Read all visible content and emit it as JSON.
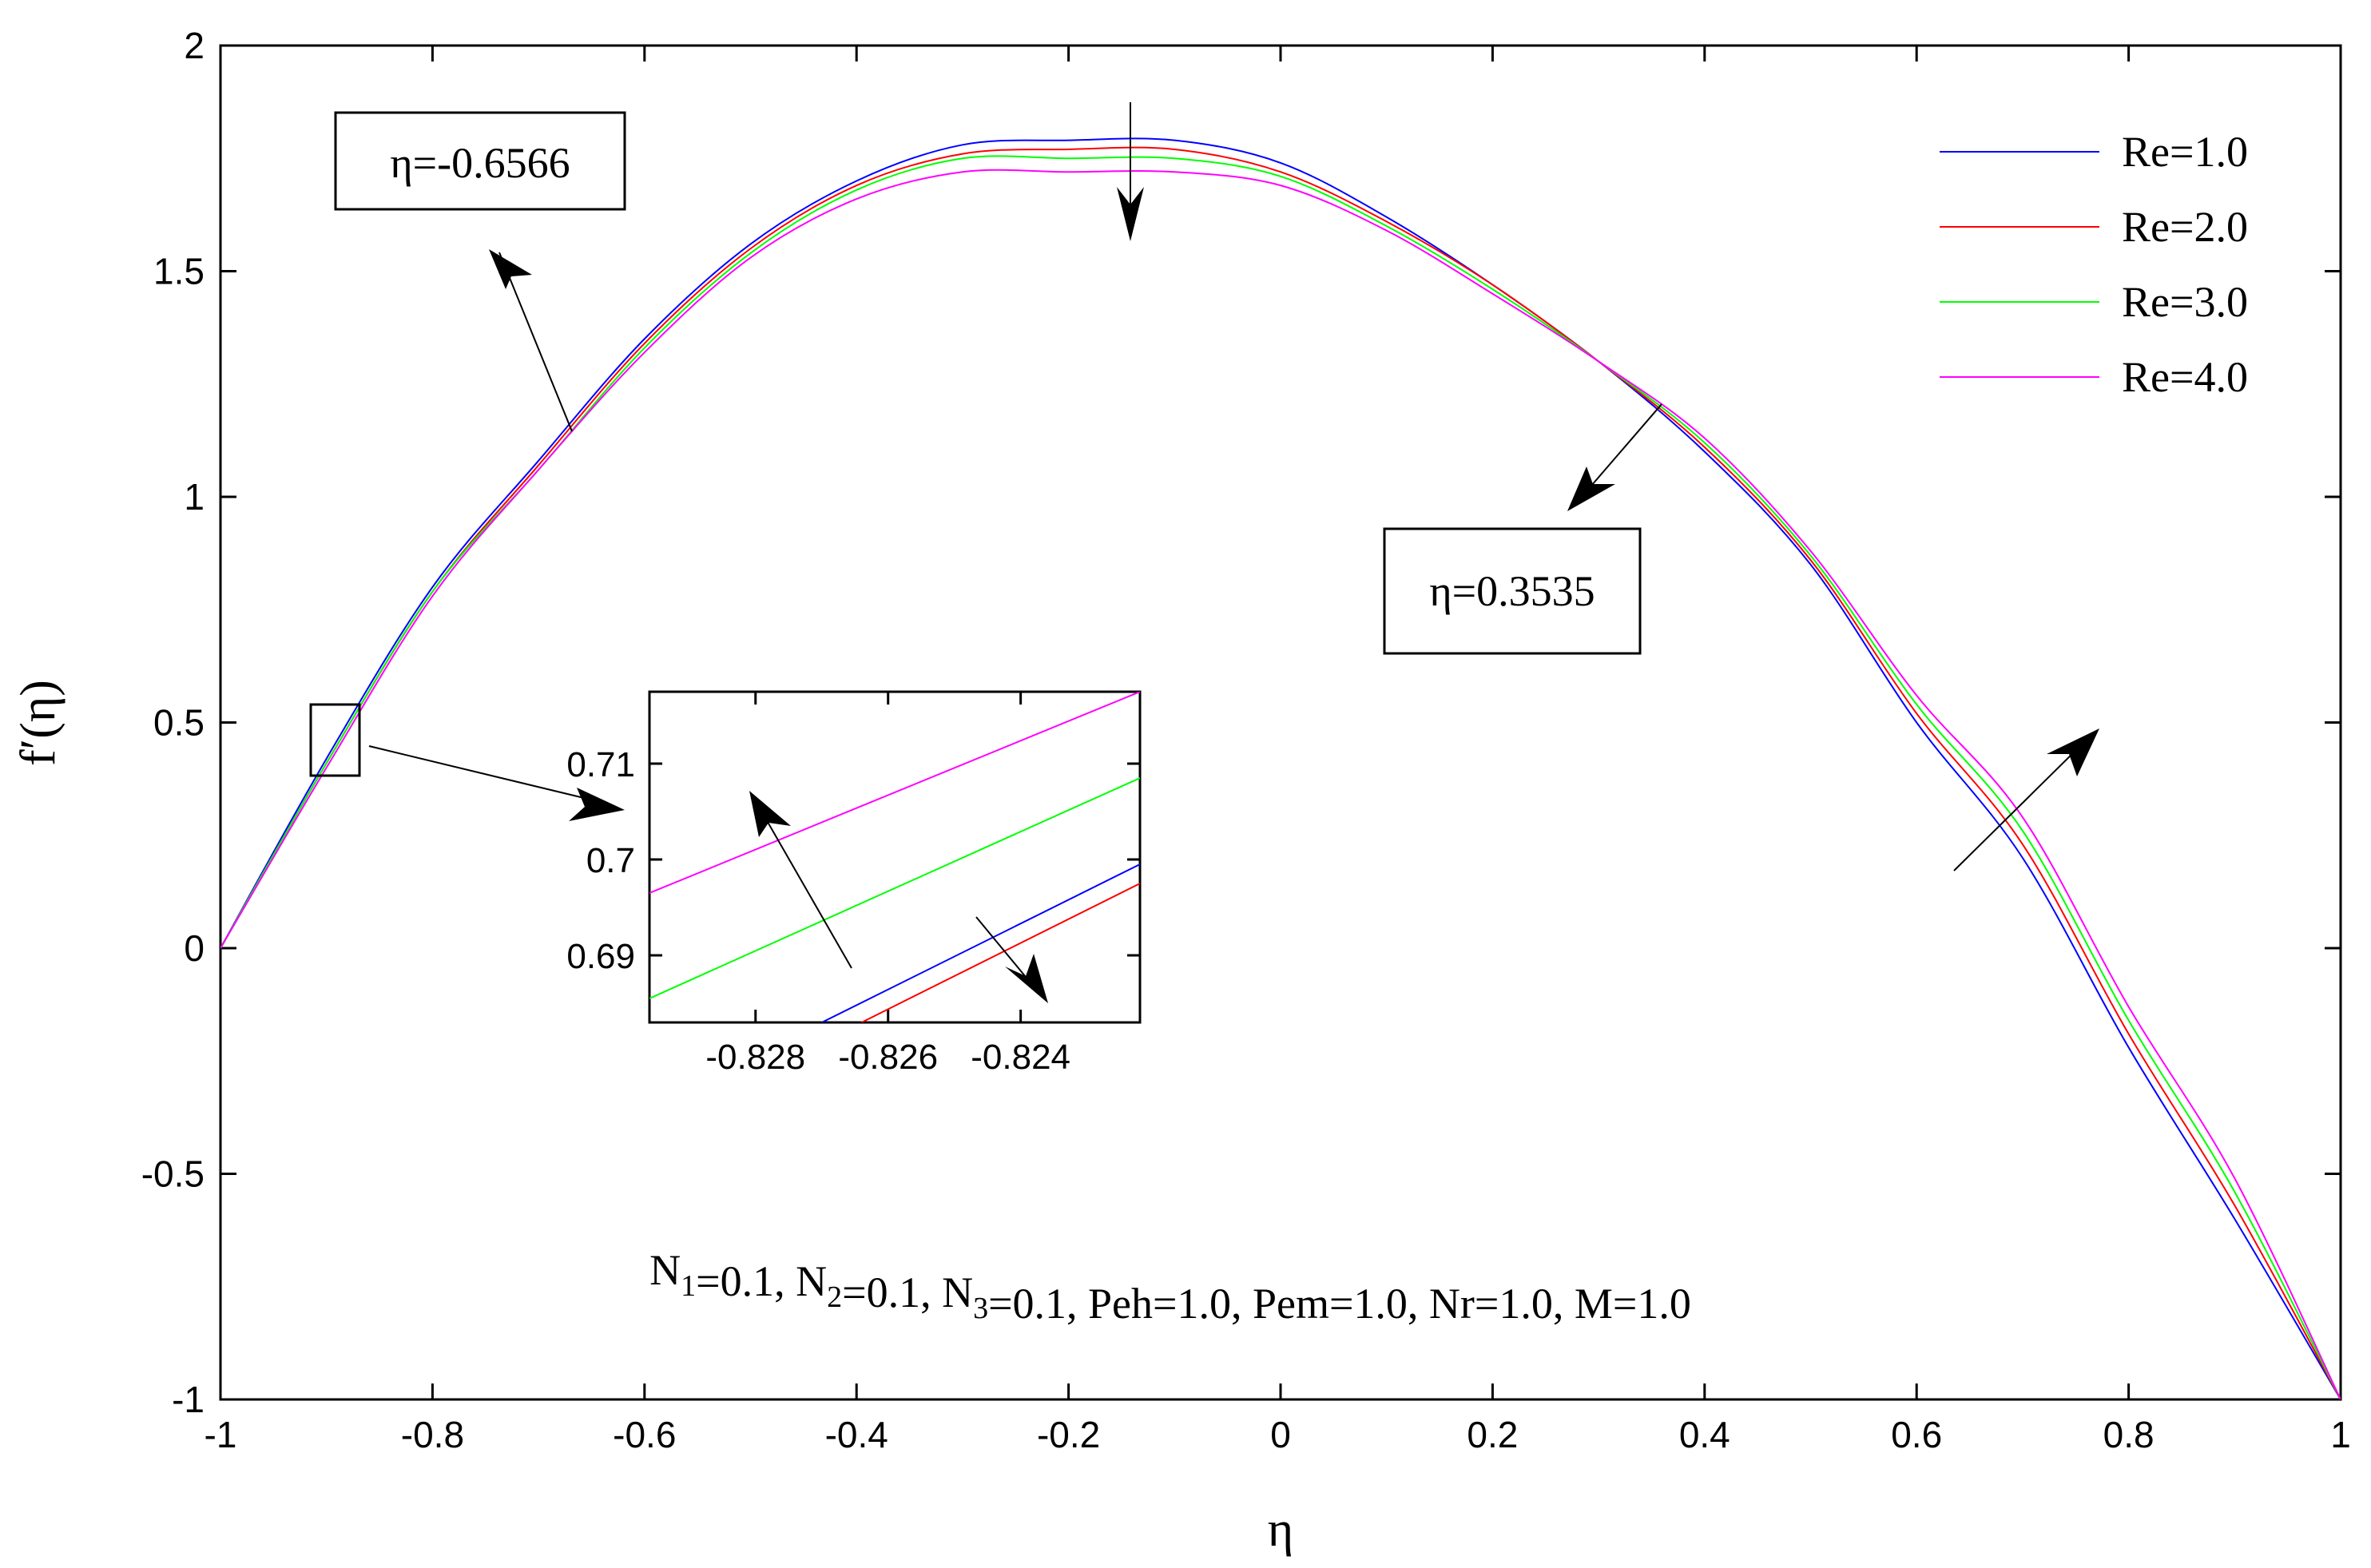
{
  "chart_data": {
    "type": "line",
    "title": "",
    "xlabel": "η",
    "ylabel": "f′(η)",
    "xlim": [
      -1,
      1
    ],
    "ylim": [
      -1,
      2
    ],
    "x_ticks": [
      -1,
      -0.8,
      -0.6,
      -0.4,
      -0.2,
      0,
      0.2,
      0.4,
      0.6,
      0.8,
      1
    ],
    "x_tick_labels": [
      "-1",
      "-0.8",
      "-0.6",
      "-0.4",
      "-0.2",
      "0",
      "0.2",
      "0.4",
      "0.6",
      "0.8",
      "1"
    ],
    "y_ticks": [
      -1,
      -0.5,
      0,
      0.5,
      1,
      1.5,
      2
    ],
    "y_tick_labels": [
      "-1",
      "-0.5",
      "0",
      "0.5",
      "1",
      "1.5",
      "2"
    ],
    "grid": false,
    "legend_position": "top-right",
    "x": [
      -1,
      -0.9,
      -0.8,
      -0.7,
      -0.6,
      -0.5,
      -0.4,
      -0.3,
      -0.2,
      -0.1,
      0,
      0.1,
      0.2,
      0.3,
      0.4,
      0.5,
      0.6,
      0.7,
      0.8,
      0.9,
      1
    ],
    "series": [
      {
        "name": "Re=1.0",
        "color": "#0000ff",
        "values": [
          0,
          0.42,
          0.8,
          1.08,
          1.35,
          1.56,
          1.7,
          1.78,
          1.79,
          1.79,
          1.74,
          1.62,
          1.47,
          1.3,
          1.1,
          0.85,
          0.5,
          0.2,
          -0.22,
          -0.6,
          -1
        ]
      },
      {
        "name": "Re=2.0",
        "color": "#ff0000",
        "values": [
          0,
          0.41,
          0.79,
          1.07,
          1.34,
          1.55,
          1.69,
          1.76,
          1.77,
          1.77,
          1.72,
          1.61,
          1.47,
          1.3,
          1.11,
          0.86,
          0.52,
          0.23,
          -0.19,
          -0.57,
          -1
        ]
      },
      {
        "name": "Re=3.0",
        "color": "#00ff00",
        "values": [
          0,
          0.41,
          0.79,
          1.06,
          1.33,
          1.54,
          1.68,
          1.75,
          1.75,
          1.75,
          1.71,
          1.6,
          1.46,
          1.3,
          1.12,
          0.87,
          0.54,
          0.26,
          -0.16,
          -0.54,
          -1
        ]
      },
      {
        "name": "Re=4.0",
        "color": "#ff00ff",
        "values": [
          0,
          0.4,
          0.78,
          1.06,
          1.32,
          1.53,
          1.66,
          1.72,
          1.72,
          1.72,
          1.69,
          1.59,
          1.45,
          1.3,
          1.13,
          0.88,
          0.56,
          0.29,
          -0.13,
          -0.51,
          -1
        ]
      }
    ],
    "annotations": [
      {
        "text": "η=-0.6566"
      },
      {
        "text": "η=0.3535"
      }
    ],
    "parameter_text": {
      "parts": [
        {
          "text": "N",
          "sub": "1"
        },
        {
          "text": "=0.1, N",
          "sub": "2"
        },
        {
          "text": "=0.1, N",
          "sub": "3"
        },
        {
          "text": "=0.1, Peh=1.0, Pem=1.0, Nr=1.0, M=1.0",
          "sub": ""
        }
      ]
    },
    "inset": {
      "xlim": [
        -0.8296,
        -0.8222
      ],
      "ylim": [
        0.683,
        0.7175
      ],
      "x_ticks": [
        -0.828,
        -0.826,
        -0.824
      ],
      "x_tick_labels": [
        "-0.828",
        "-0.826",
        "-0.824"
      ],
      "y_ticks": [
        0.69,
        0.7,
        0.71
      ],
      "y_tick_labels": [
        "0.69",
        "0.7",
        "0.71"
      ],
      "series": [
        {
          "name": "Re=1.0",
          "color": "#0000ff",
          "x": [
            -0.827,
            -0.8222
          ],
          "values": [
            0.683,
            0.6995
          ]
        },
        {
          "name": "Re=2.0",
          "color": "#ff0000",
          "x": [
            -0.8264,
            -0.8222
          ],
          "values": [
            0.683,
            0.6975
          ]
        },
        {
          "name": "Re=3.0",
          "color": "#00ff00",
          "x": [
            -0.8296,
            -0.8222
          ],
          "values": [
            0.6855,
            0.7085
          ]
        },
        {
          "name": "Re=4.0",
          "color": "#ff00ff",
          "x": [
            -0.8296,
            -0.8222
          ],
          "values": [
            0.6965,
            0.7175
          ]
        }
      ]
    }
  }
}
